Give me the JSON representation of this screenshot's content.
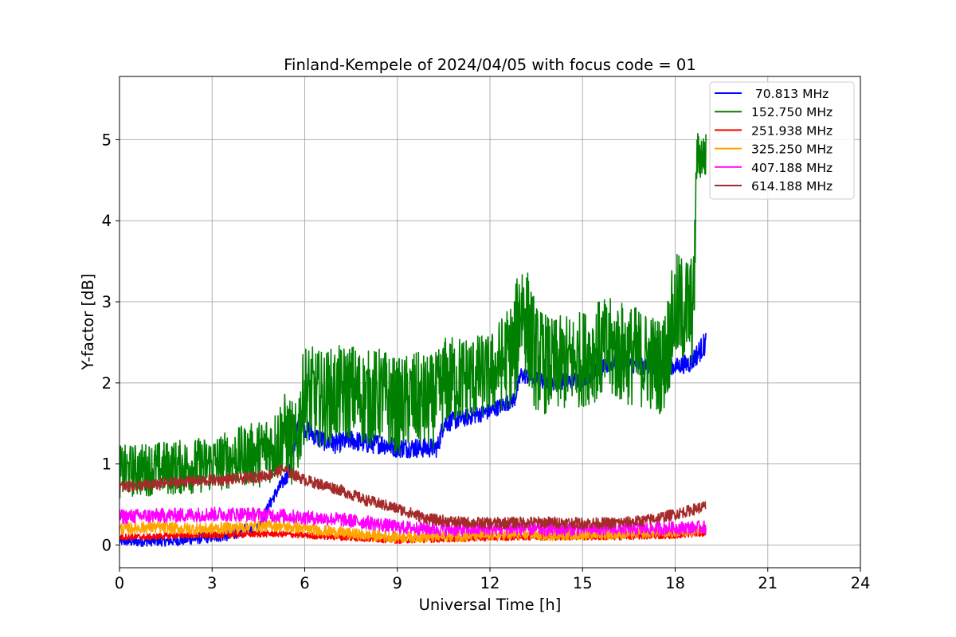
{
  "chart_data": {
    "type": "line",
    "title": "Finland-Kempele of 2024/04/05 with focus code = 01",
    "xlabel": "Universal Time [h]",
    "ylabel": "Y-factor [dB]",
    "xlim": [
      0,
      24
    ],
    "ylim": [
      -0.28,
      5.78
    ],
    "xticks": [
      "0",
      "3",
      "6",
      "9",
      "12",
      "15",
      "18",
      "21",
      "24"
    ],
    "yticks": [
      "0",
      "1",
      "2",
      "3",
      "4",
      "5"
    ],
    "grid": true,
    "legend_position": "top-right",
    "series": [
      {
        "name": " 70.813 MHz",
        "color": "#0000ff",
        "points": [
          [
            0,
            0.05
          ],
          [
            0.5,
            0.04
          ],
          [
            1,
            0.05
          ],
          [
            1.5,
            0.05
          ],
          [
            2,
            0.06
          ],
          [
            2.5,
            0.08
          ],
          [
            3,
            0.1
          ],
          [
            3.5,
            0.12
          ],
          [
            4,
            0.18
          ],
          [
            4.5,
            0.2
          ],
          [
            4.8,
            0.45
          ],
          [
            5,
            0.6
          ],
          [
            5.5,
            0.9
          ],
          [
            5.8,
            1.5
          ],
          [
            6,
            1.45
          ],
          [
            6.5,
            1.3
          ],
          [
            7,
            1.25
          ],
          [
            7.5,
            1.3
          ],
          [
            8,
            1.25
          ],
          [
            8.5,
            1.25
          ],
          [
            9,
            1.2
          ],
          [
            9.5,
            1.2
          ],
          [
            10,
            1.2
          ],
          [
            10.3,
            1.2
          ],
          [
            10.5,
            1.5
          ],
          [
            11,
            1.55
          ],
          [
            12,
            1.65
          ],
          [
            12.8,
            1.8
          ],
          [
            13,
            2.1
          ],
          [
            14,
            2.0
          ],
          [
            15,
            2.05
          ],
          [
            16,
            2.25
          ],
          [
            17,
            2.2
          ],
          [
            17.6,
            2.2
          ],
          [
            18,
            2.2
          ],
          [
            18.5,
            2.25
          ],
          [
            19,
            2.5
          ]
        ],
        "spread": [
          [
            0,
            0.12
          ],
          [
            4,
            0.15
          ],
          [
            5,
            0.15
          ],
          [
            6,
            0.25
          ],
          [
            10,
            0.25
          ],
          [
            12,
            0.2
          ],
          [
            18,
            0.2
          ],
          [
            19,
            0.3
          ]
        ]
      },
      {
        "name": "152.750 MHz",
        "color": "#008000",
        "points": [
          [
            0,
            0.9
          ],
          [
            0.5,
            0.92
          ],
          [
            1,
            0.94
          ],
          [
            1.5,
            0.95
          ],
          [
            2,
            0.96
          ],
          [
            2.5,
            0.98
          ],
          [
            3,
            1.0
          ],
          [
            3.5,
            1.05
          ],
          [
            4,
            1.1
          ],
          [
            4.5,
            1.12
          ],
          [
            4.8,
            1.2
          ],
          [
            5,
            1.2
          ],
          [
            5.3,
            1.4
          ],
          [
            5.7,
            1.2
          ],
          [
            6,
            1.9
          ],
          [
            6.5,
            1.8
          ],
          [
            7,
            1.85
          ],
          [
            7.5,
            1.9
          ],
          [
            8,
            1.8
          ],
          [
            8.5,
            1.85
          ],
          [
            9,
            1.7
          ],
          [
            9.5,
            1.8
          ],
          [
            10,
            1.75
          ],
          [
            10.3,
            1.8
          ],
          [
            10.5,
            2.0
          ],
          [
            11,
            2.05
          ],
          [
            12,
            2.1
          ],
          [
            12.8,
            2.4
          ],
          [
            13,
            3.0
          ],
          [
            13.5,
            2.3
          ],
          [
            14,
            2.2
          ],
          [
            15,
            2.3
          ],
          [
            15.5,
            2.4
          ],
          [
            16,
            2.4
          ],
          [
            16.5,
            2.35
          ],
          [
            17,
            2.3
          ],
          [
            17.6,
            2.2
          ],
          [
            18,
            2.9
          ],
          [
            18.6,
            2.9
          ],
          [
            18.7,
            4.8
          ],
          [
            19,
            4.8
          ]
        ],
        "spread": [
          [
            0,
            0.65
          ],
          [
            3,
            0.7
          ],
          [
            4,
            0.75
          ],
          [
            5,
            0.9
          ],
          [
            6,
            1.2
          ],
          [
            9,
            1.2
          ],
          [
            10,
            1.2
          ],
          [
            12,
            1.0
          ],
          [
            13,
            1.5
          ],
          [
            14,
            1.2
          ],
          [
            15,
            1.2
          ],
          [
            16,
            1.3
          ],
          [
            17.5,
            1.2
          ],
          [
            18,
            1.4
          ],
          [
            18.6,
            1.4
          ],
          [
            18.7,
            0.6
          ],
          [
            19,
            0.6
          ]
        ]
      },
      {
        "name": "251.938 MHz",
        "color": "#ff0000",
        "points": [
          [
            0,
            0.1
          ],
          [
            1,
            0.1
          ],
          [
            2,
            0.12
          ],
          [
            3,
            0.12
          ],
          [
            4,
            0.13
          ],
          [
            5,
            0.14
          ],
          [
            6,
            0.12
          ],
          [
            7,
            0.1
          ],
          [
            8,
            0.08
          ],
          [
            9,
            0.06
          ],
          [
            10,
            0.07
          ],
          [
            11,
            0.08
          ],
          [
            12,
            0.09
          ],
          [
            13,
            0.1
          ],
          [
            14,
            0.1
          ],
          [
            15,
            0.1
          ],
          [
            16,
            0.1
          ],
          [
            17,
            0.11
          ],
          [
            18,
            0.12
          ],
          [
            19,
            0.15
          ]
        ],
        "spread": [
          [
            0,
            0.08
          ],
          [
            19,
            0.08
          ]
        ]
      },
      {
        "name": "325.250 MHz",
        "color": "#ffa500",
        "points": [
          [
            0,
            0.2
          ],
          [
            1,
            0.22
          ],
          [
            2,
            0.2
          ],
          [
            3,
            0.2
          ],
          [
            4,
            0.22
          ],
          [
            5,
            0.24
          ],
          [
            6,
            0.2
          ],
          [
            7,
            0.16
          ],
          [
            8,
            0.12
          ],
          [
            9,
            0.1
          ],
          [
            10,
            0.1
          ],
          [
            11,
            0.11
          ],
          [
            12,
            0.12
          ],
          [
            13,
            0.13
          ],
          [
            14,
            0.12
          ],
          [
            15,
            0.13
          ],
          [
            16,
            0.13
          ],
          [
            17,
            0.15
          ],
          [
            18,
            0.16
          ],
          [
            19,
            0.18
          ]
        ],
        "spread": [
          [
            0,
            0.15
          ],
          [
            19,
            0.12
          ]
        ]
      },
      {
        "name": "407.188 MHz",
        "color": "#ff00ff",
        "points": [
          [
            0,
            0.35
          ],
          [
            1,
            0.36
          ],
          [
            2,
            0.37
          ],
          [
            3,
            0.38
          ],
          [
            4,
            0.38
          ],
          [
            5,
            0.37
          ],
          [
            6,
            0.34
          ],
          [
            7,
            0.32
          ],
          [
            8,
            0.28
          ],
          [
            9,
            0.22
          ],
          [
            10,
            0.2
          ],
          [
            11,
            0.19
          ],
          [
            12,
            0.2
          ],
          [
            13,
            0.2
          ],
          [
            14,
            0.19
          ],
          [
            15,
            0.2
          ],
          [
            16,
            0.2
          ],
          [
            17,
            0.2
          ],
          [
            18,
            0.21
          ],
          [
            19,
            0.22
          ]
        ],
        "spread": [
          [
            0,
            0.18
          ],
          [
            19,
            0.16
          ]
        ]
      },
      {
        "name": "614.188 MHz",
        "color": "#a52a2a",
        "points": [
          [
            0,
            0.72
          ],
          [
            1,
            0.74
          ],
          [
            2,
            0.78
          ],
          [
            3,
            0.8
          ],
          [
            4,
            0.82
          ],
          [
            4.8,
            0.86
          ],
          [
            5.3,
            0.93
          ],
          [
            5.7,
            0.86
          ],
          [
            6,
            0.8
          ],
          [
            7,
            0.7
          ],
          [
            8,
            0.55
          ],
          [
            9,
            0.45
          ],
          [
            10,
            0.32
          ],
          [
            11,
            0.28
          ],
          [
            12,
            0.27
          ],
          [
            13,
            0.28
          ],
          [
            14,
            0.28
          ],
          [
            15,
            0.27
          ],
          [
            16,
            0.27
          ],
          [
            17,
            0.3
          ],
          [
            18,
            0.38
          ],
          [
            19,
            0.48
          ]
        ],
        "spread": [
          [
            0,
            0.14
          ],
          [
            19,
            0.14
          ]
        ]
      }
    ]
  }
}
